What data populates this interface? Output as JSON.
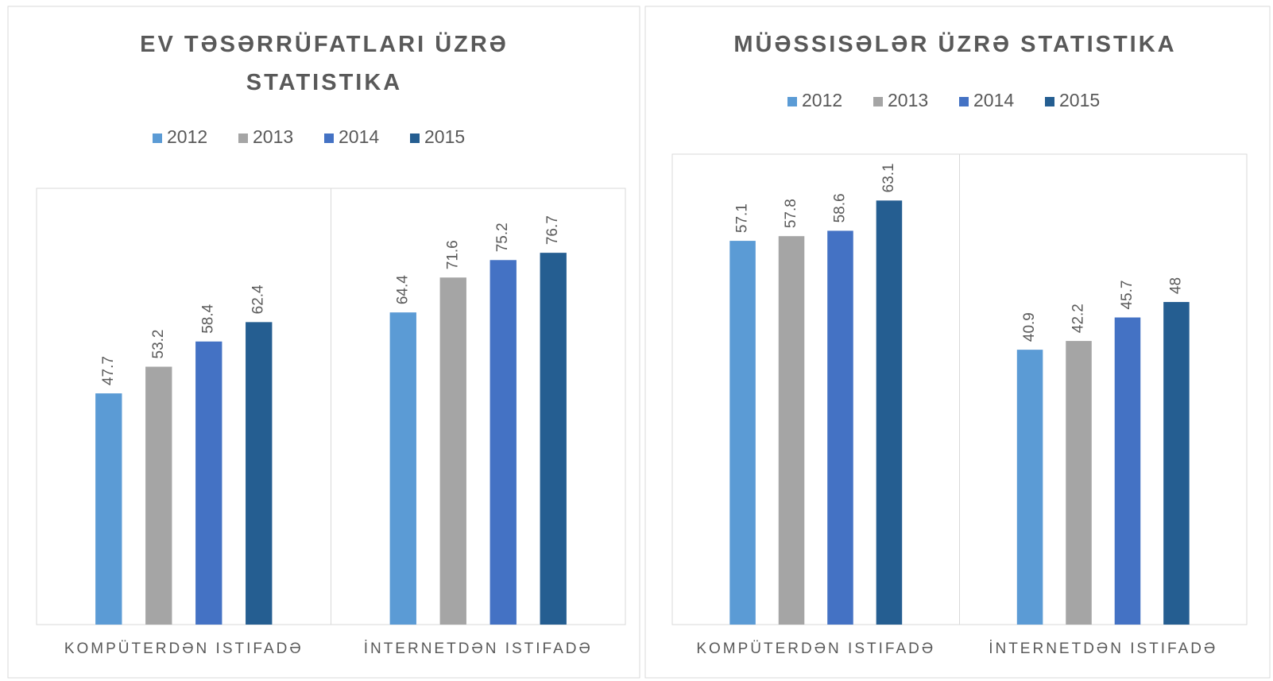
{
  "chart_data": [
    {
      "type": "bar",
      "title": "EV TƏSƏRRÜFATLARI ÜZRƏ STATISTIKA",
      "categories": [
        "KOMPÜTERDƏN ISTIFADƏ",
        "İNTERNETDƏN ISTIFADƏ"
      ],
      "series": [
        {
          "name": "2012",
          "color": "#5b9bd5",
          "values": [
            47.7,
            64.4
          ]
        },
        {
          "name": "2013",
          "color": "#a5a5a5",
          "values": [
            53.2,
            71.6
          ]
        },
        {
          "name": "2014",
          "color": "#4472c4",
          "values": [
            58.4,
            75.2
          ]
        },
        {
          "name": "2015",
          "color": "#255e91",
          "values": [
            62.4,
            76.7
          ]
        }
      ],
      "ylim": [
        0,
        90
      ],
      "legend": "top"
    },
    {
      "type": "bar",
      "title": "MÜƏSSISƏLƏR ÜZRƏ STATISTIKA",
      "categories": [
        "KOMPÜTERDƏN ISTIFADƏ",
        "İNTERNETDƏN ISTIFADƏ"
      ],
      "series": [
        {
          "name": "2012",
          "color": "#5b9bd5",
          "values": [
            57.1,
            40.9
          ]
        },
        {
          "name": "2013",
          "color": "#a5a5a5",
          "values": [
            57.8,
            42.2
          ]
        },
        {
          "name": "2014",
          "color": "#4472c4",
          "values": [
            58.6,
            45.7
          ]
        },
        {
          "name": "2015",
          "color": "#255e91",
          "values": [
            63.1,
            48
          ]
        }
      ],
      "ylim": [
        0,
        70
      ],
      "legend": "top"
    }
  ]
}
